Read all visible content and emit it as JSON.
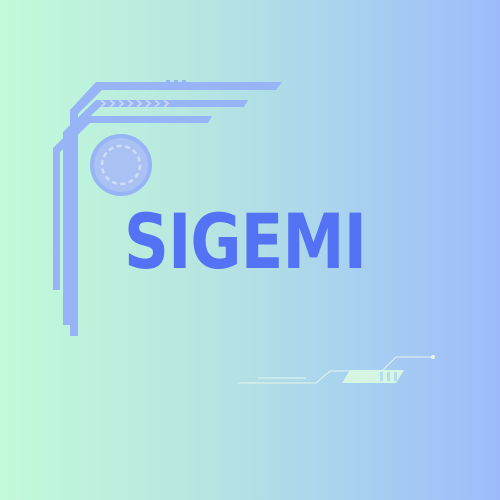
{
  "logo": {
    "wordmark": "SIGEMI",
    "wordmark_color": "#5472f4"
  },
  "background": {
    "gradient_start": "#c2fbd9",
    "gradient_end": "#9ebafb"
  },
  "decorations": {
    "frame_color": "#96b4f6",
    "frame_icon": "circuit-frame-icon",
    "ring_icon": "dashed-ring-icon",
    "chevrons_icon": "chevron-arrows-icon",
    "accent_icon": "circuit-trace-icon",
    "accent_color": "#d6f5e3"
  }
}
